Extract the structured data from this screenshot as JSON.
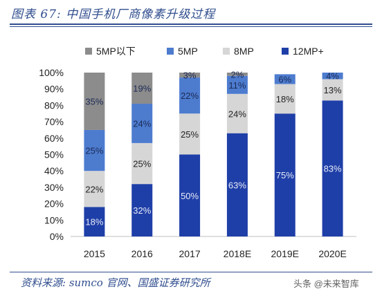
{
  "header": {
    "title": "图表 67:  中国手机厂商像素升级过程"
  },
  "footer": {
    "source": "资料来源:  sumco 官网、国盛证券研究所",
    "watermark": "头条 @未来智库"
  },
  "chart_data": {
    "type": "bar",
    "stacked": true,
    "percent": true,
    "categories": [
      "2015",
      "2016",
      "2017",
      "2018E",
      "2019E",
      "2020E"
    ],
    "series": [
      {
        "name": "12MP+",
        "color": "#1f3fa8",
        "values": [
          18,
          32,
          50,
          63,
          75,
          83
        ],
        "labels": [
          "18%",
          "32%",
          "50%",
          "63%",
          "75%",
          "83%"
        ]
      },
      {
        "name": "8MP",
        "color": "#d6d6d6",
        "values": [
          22,
          25,
          25,
          24,
          18,
          13
        ],
        "labels": [
          "22%",
          "25%",
          "25%",
          "24%",
          "18%",
          "13%"
        ]
      },
      {
        "name": "5MP",
        "color": "#4d7ccf",
        "values": [
          25,
          24,
          22,
          11,
          6,
          4
        ],
        "labels": [
          "25%",
          "24%",
          "22%",
          "11%",
          "6%",
          "4%"
        ]
      },
      {
        "name": "5MP以下",
        "color": "#8c8c8c",
        "values": [
          35,
          19,
          3,
          2,
          0,
          0
        ],
        "labels": [
          "35%",
          "19%",
          "3%",
          "2%",
          "",
          ""
        ]
      }
    ],
    "legend_order": [
      "5MP以下",
      "5MP",
      "8MP",
      "12MP+"
    ],
    "legend_position": "top",
    "ylim": [
      0,
      100
    ],
    "yticks": [
      0,
      10,
      20,
      30,
      40,
      50,
      60,
      70,
      80,
      90,
      100
    ],
    "ytick_labels": [
      "0%",
      "10%",
      "20%",
      "30%",
      "40%",
      "50%",
      "60%",
      "70%",
      "80%",
      "90%",
      "100%"
    ],
    "grid": false
  }
}
